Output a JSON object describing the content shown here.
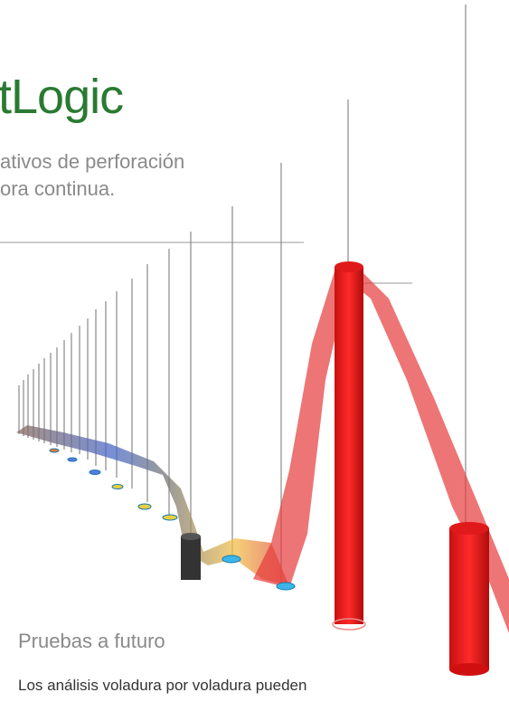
{
  "header": {
    "title": "tLogic",
    "subtitle_lines": [
      "ativos de perforación",
      "ora continua."
    ]
  },
  "section": {
    "heading": "Pruebas a futuro",
    "body": "Los análisis voladura por voladura pueden"
  }
}
